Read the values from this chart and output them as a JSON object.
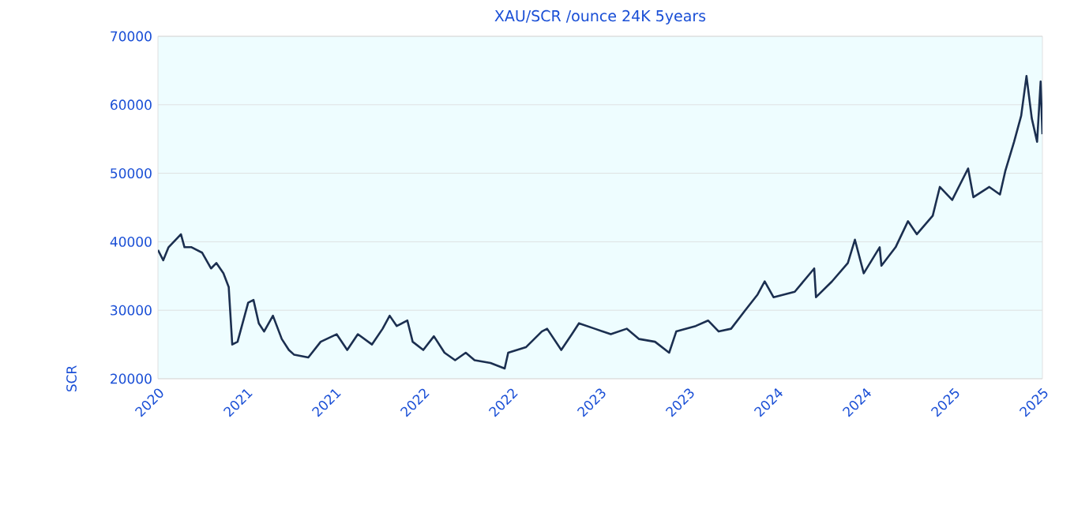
{
  "chart_data": {
    "type": "line",
    "title": "XAU/SCR /ounce 24K 5years",
    "ylabel": "SCR",
    "x": [
      2020.25,
      2020.28,
      2020.31,
      2020.38,
      2020.4,
      2020.44,
      2020.5,
      2020.55,
      2020.58,
      2020.62,
      2020.65,
      2020.67,
      2020.7,
      2020.76,
      2020.79,
      2020.82,
      2020.85,
      2020.9,
      2020.95,
      2020.99,
      2021.02,
      2021.1,
      2021.17,
      2021.26,
      2021.32,
      2021.38,
      2021.46,
      2021.52,
      2021.56,
      2021.6,
      2021.66,
      2021.69,
      2021.75,
      2021.81,
      2021.87,
      2021.93,
      2021.99,
      2022.04,
      2022.13,
      2022.21,
      2022.23,
      2022.33,
      2022.42,
      2022.45,
      2022.53,
      2022.59,
      2022.63,
      2022.72,
      2022.81,
      2022.9,
      2022.97,
      2023.06,
      2023.14,
      2023.18,
      2023.29,
      2023.36,
      2023.42,
      2023.49,
      2023.57,
      2023.64,
      2023.68,
      2023.73,
      2023.85,
      2023.96,
      2023.97,
      2024.06,
      2024.15,
      2024.19,
      2024.24,
      2024.33,
      2024.34,
      2024.42,
      2024.49,
      2024.54,
      2024.63,
      2024.67,
      2024.74,
      2024.83,
      2024.86,
      2024.95,
      2025.01,
      2025.04,
      2025.09,
      2025.13,
      2025.16,
      2025.19,
      2025.22,
      2025.24,
      2025.25
    ],
    "series": [
      {
        "color": "#1b2f50",
        "values": [
          38800,
          37300,
          39200,
          41100,
          39200,
          39200,
          38400,
          36100,
          36900,
          35400,
          33400,
          25000,
          25400,
          31100,
          31500,
          28100,
          26900,
          29200,
          25800,
          24200,
          23500,
          23100,
          25400,
          26500,
          24200,
          26500,
          25000,
          27300,
          29200,
          27700,
          28500,
          25400,
          24200,
          26200,
          23800,
          22700,
          23800,
          22700,
          22300,
          21500,
          23800,
          24600,
          26900,
          27300,
          24200,
          26500,
          28100,
          27300,
          26500,
          27300,
          25800,
          25400,
          23800,
          26900,
          27700,
          28500,
          26900,
          27300,
          30000,
          32300,
          34200,
          31900,
          32700,
          36100,
          31900,
          34200,
          36900,
          40300,
          35400,
          39200,
          36500,
          39200,
          43000,
          41100,
          43800,
          48000,
          46100,
          50700,
          46500,
          48000,
          46900,
          50300,
          54600,
          58400,
          64200,
          58000,
          54600,
          63400,
          55700
        ]
      }
    ],
    "xlim": [
      2020.25,
      2025.25
    ],
    "xticks": [
      {
        "value": 2020.25,
        "label": "2020"
      },
      {
        "value": 2020.75,
        "label": "2021"
      },
      {
        "value": 2021.25,
        "label": "2021"
      },
      {
        "value": 2021.75,
        "label": "2022"
      },
      {
        "value": 2022.25,
        "label": "2022"
      },
      {
        "value": 2022.75,
        "label": "2023"
      },
      {
        "value": 2023.25,
        "label": "2023"
      },
      {
        "value": 2023.75,
        "label": "2024"
      },
      {
        "value": 2024.25,
        "label": "2024"
      },
      {
        "value": 2024.75,
        "label": "2025"
      },
      {
        "value": 2025.25,
        "label": "2025"
      }
    ],
    "ylim": [
      20000,
      70000
    ],
    "yticks": [
      20000,
      30000,
      40000,
      50000,
      60000,
      70000
    ],
    "grid": "y",
    "marker": "none",
    "line_style": "solid"
  }
}
